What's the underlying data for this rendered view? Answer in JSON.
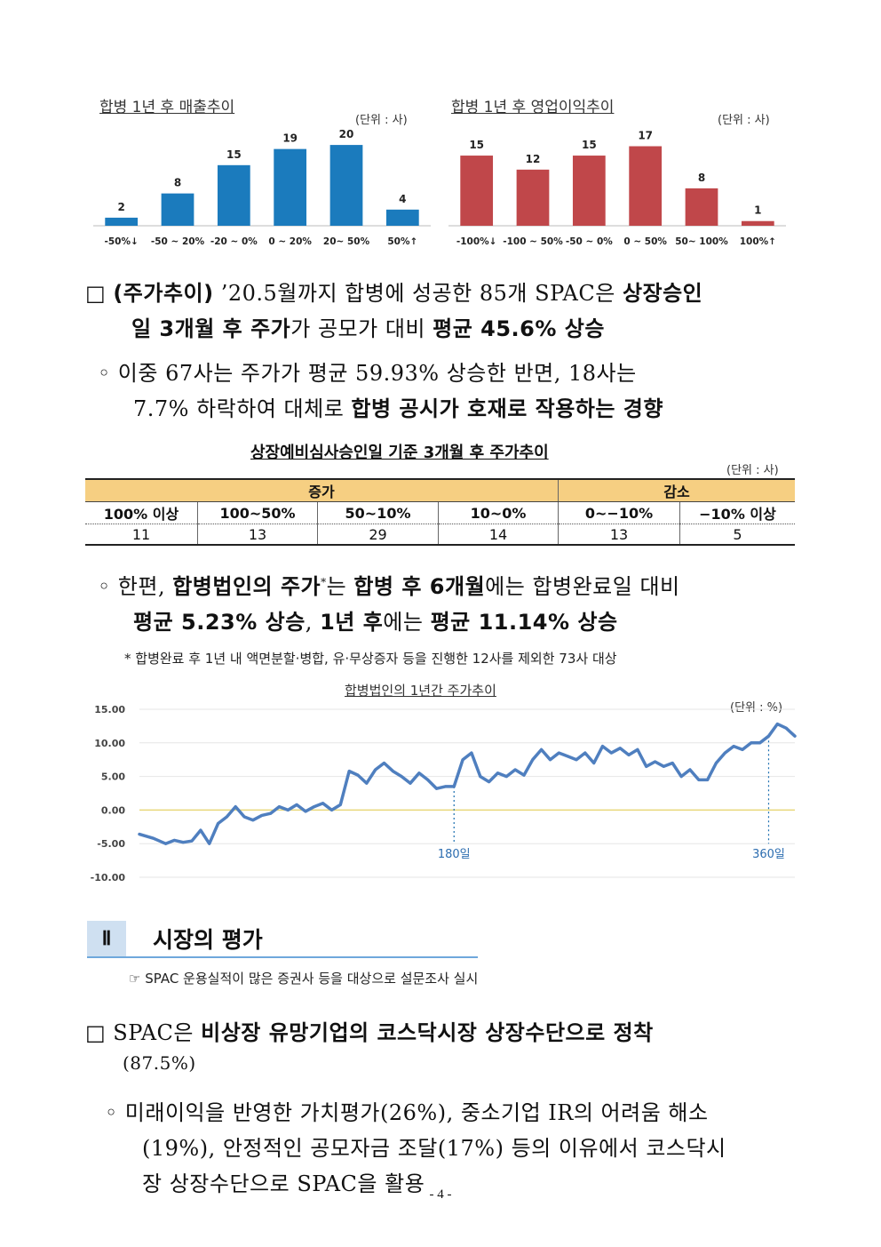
{
  "chart_data": [
    {
      "type": "bar",
      "title": "합병 1년 후 매출추이",
      "unit": "(단위 : 사)",
      "categories": [
        "-50%↓",
        "-50 ~ 20%",
        "-20 ~ 0%",
        "0 ~ 20%",
        "20~ 50%",
        "50%↑"
      ],
      "values": [
        2,
        8,
        15,
        19,
        20,
        4
      ],
      "color": "#1b7bbd",
      "ylim": [
        0,
        22
      ]
    },
    {
      "type": "bar",
      "title": "합병 1년 후 영업이익추이",
      "unit": "(단위 : 사)",
      "categories": [
        "-100%↓",
        "-100 ~ 50%",
        "-50 ~ 0%",
        "0 ~ 50%",
        "50~ 100%",
        "100%↑"
      ],
      "values": [
        15,
        12,
        15,
        17,
        8,
        1
      ],
      "color": "#c0474a",
      "ylim": [
        0,
        19
      ]
    },
    {
      "type": "line",
      "title": "합병법인의 1년간 주가추이",
      "unit": "(단위 : %)",
      "yticks": [
        "15.00",
        "10.00",
        "5.00",
        "0.00",
        "-5.00",
        "-10.00"
      ],
      "ylim": [
        -10,
        15
      ],
      "xlim": [
        0,
        375
      ],
      "markers": [
        {
          "x": 180,
          "label": "180일"
        },
        {
          "x": 360,
          "label": "360일"
        }
      ],
      "series": [
        {
          "x": [
            0,
            8,
            15,
            20,
            25,
            30,
            35,
            40,
            45,
            50,
            55,
            60,
            65,
            70,
            75,
            80,
            85,
            90,
            95,
            100,
            105,
            110,
            115,
            120,
            125,
            130,
            135,
            140,
            145,
            150,
            155,
            160,
            165,
            170,
            175,
            180,
            185,
            190,
            195,
            200,
            205,
            210,
            215,
            220,
            225,
            230,
            235,
            240,
            245,
            250,
            255,
            260,
            265,
            270,
            275,
            280,
            285,
            290,
            295,
            300,
            305,
            310,
            315,
            320,
            325,
            330,
            335,
            340,
            345,
            350,
            355,
            360,
            365,
            370,
            375
          ],
          "y": [
            -3.6,
            -4.2,
            -5.0,
            -4.5,
            -4.8,
            -4.6,
            -3.0,
            -5.0,
            -2.0,
            -1.0,
            0.5,
            -1.0,
            -1.5,
            -0.8,
            -0.5,
            0.5,
            0.0,
            0.8,
            -0.2,
            0.5,
            1.0,
            0.0,
            0.8,
            5.8,
            5.2,
            4.0,
            6.0,
            7.0,
            5.8,
            5.0,
            4.0,
            5.5,
            4.5,
            3.2,
            3.5,
            3.5,
            7.5,
            8.5,
            5.0,
            4.2,
            5.5,
            5.0,
            6.0,
            5.2,
            7.5,
            9.0,
            7.5,
            8.5,
            8.0,
            7.5,
            8.5,
            7.0,
            9.5,
            8.5,
            9.2,
            8.2,
            9.0,
            6.5,
            7.2,
            6.5,
            7.0,
            5.0,
            6.0,
            4.5,
            4.5,
            7.0,
            8.5,
            9.5,
            9.0,
            10.0,
            10.0,
            11.0,
            12.8,
            12.2,
            11.0
          ]
        }
      ]
    }
  ],
  "para1": {
    "box": "□",
    "bold_head": "(주가추이)",
    "line1_text": " ’20.5월까지 합병에 성공한 85개 SPAC은 ",
    "line1_bold": "상장승인",
    "line2_bold1": "일 3개월 후 주가",
    "line2_text": "가 공모가 대비 ",
    "line2_bold2": "평균 45.6% 상승"
  },
  "para2": {
    "line1": "◦ 이중 67사는 주가가 평균 59.93% 상승한 반면, 18사는",
    "line2_text": "7.7% 하락하여 대체로 ",
    "line2_bold": "합병 공시가 호재로 작용하는 경향"
  },
  "table": {
    "title": "상장예비심사승인일 기준 3개월 후 주가추이",
    "unit": "(단위 : 사)",
    "group1": "증가",
    "group2": "감소",
    "headers": [
      "100% 이상",
      "100~50%",
      "50~10%",
      "10~0%",
      "0~−10%",
      "−10% 이상"
    ],
    "values": [
      "11",
      "13",
      "29",
      "14",
      "13",
      "5"
    ]
  },
  "para3": {
    "l1_a": "◦ 한편, ",
    "l1_b": "합병법인의 주가",
    "l1_sup": "*",
    "l1_c": "는 ",
    "l1_d": "합병 후 6개월",
    "l1_e": "에는 합병완료일 대비",
    "l2_a": "평균 5.23% 상승",
    "l2_b": ", ",
    "l2_c": "1년 후",
    "l2_d": "에는 ",
    "l2_e": "평균 11.14% 상승"
  },
  "footnote": "* 합병완료 후 1년 내 액면분할·병합, 유·무상증자 등을 진행한 12사를 제외한 73사 대상",
  "section": {
    "num": "Ⅱ",
    "title": "시장의 평가",
    "note": "☞ SPAC 운용실적이 많은 증권사 등을 대상으로 설문조사 실시"
  },
  "para4": {
    "l1_a": "□ SPAC은 ",
    "l1_b": "비상장 유망기업의 코스닥시장 상장수단으로 정착",
    "l2": "(87.5%)"
  },
  "para5": {
    "l1": "◦ 미래이익을 반영한 가치평가(26%), 중소기업 IR의 어려움 해소",
    "l2": "(19%), 안정적인 공모자금 조달(17%) 등의 이유에서 코스닥시",
    "l3": "장 상장수단으로 SPAC을 활용"
  },
  "page_number": "- 4 -"
}
